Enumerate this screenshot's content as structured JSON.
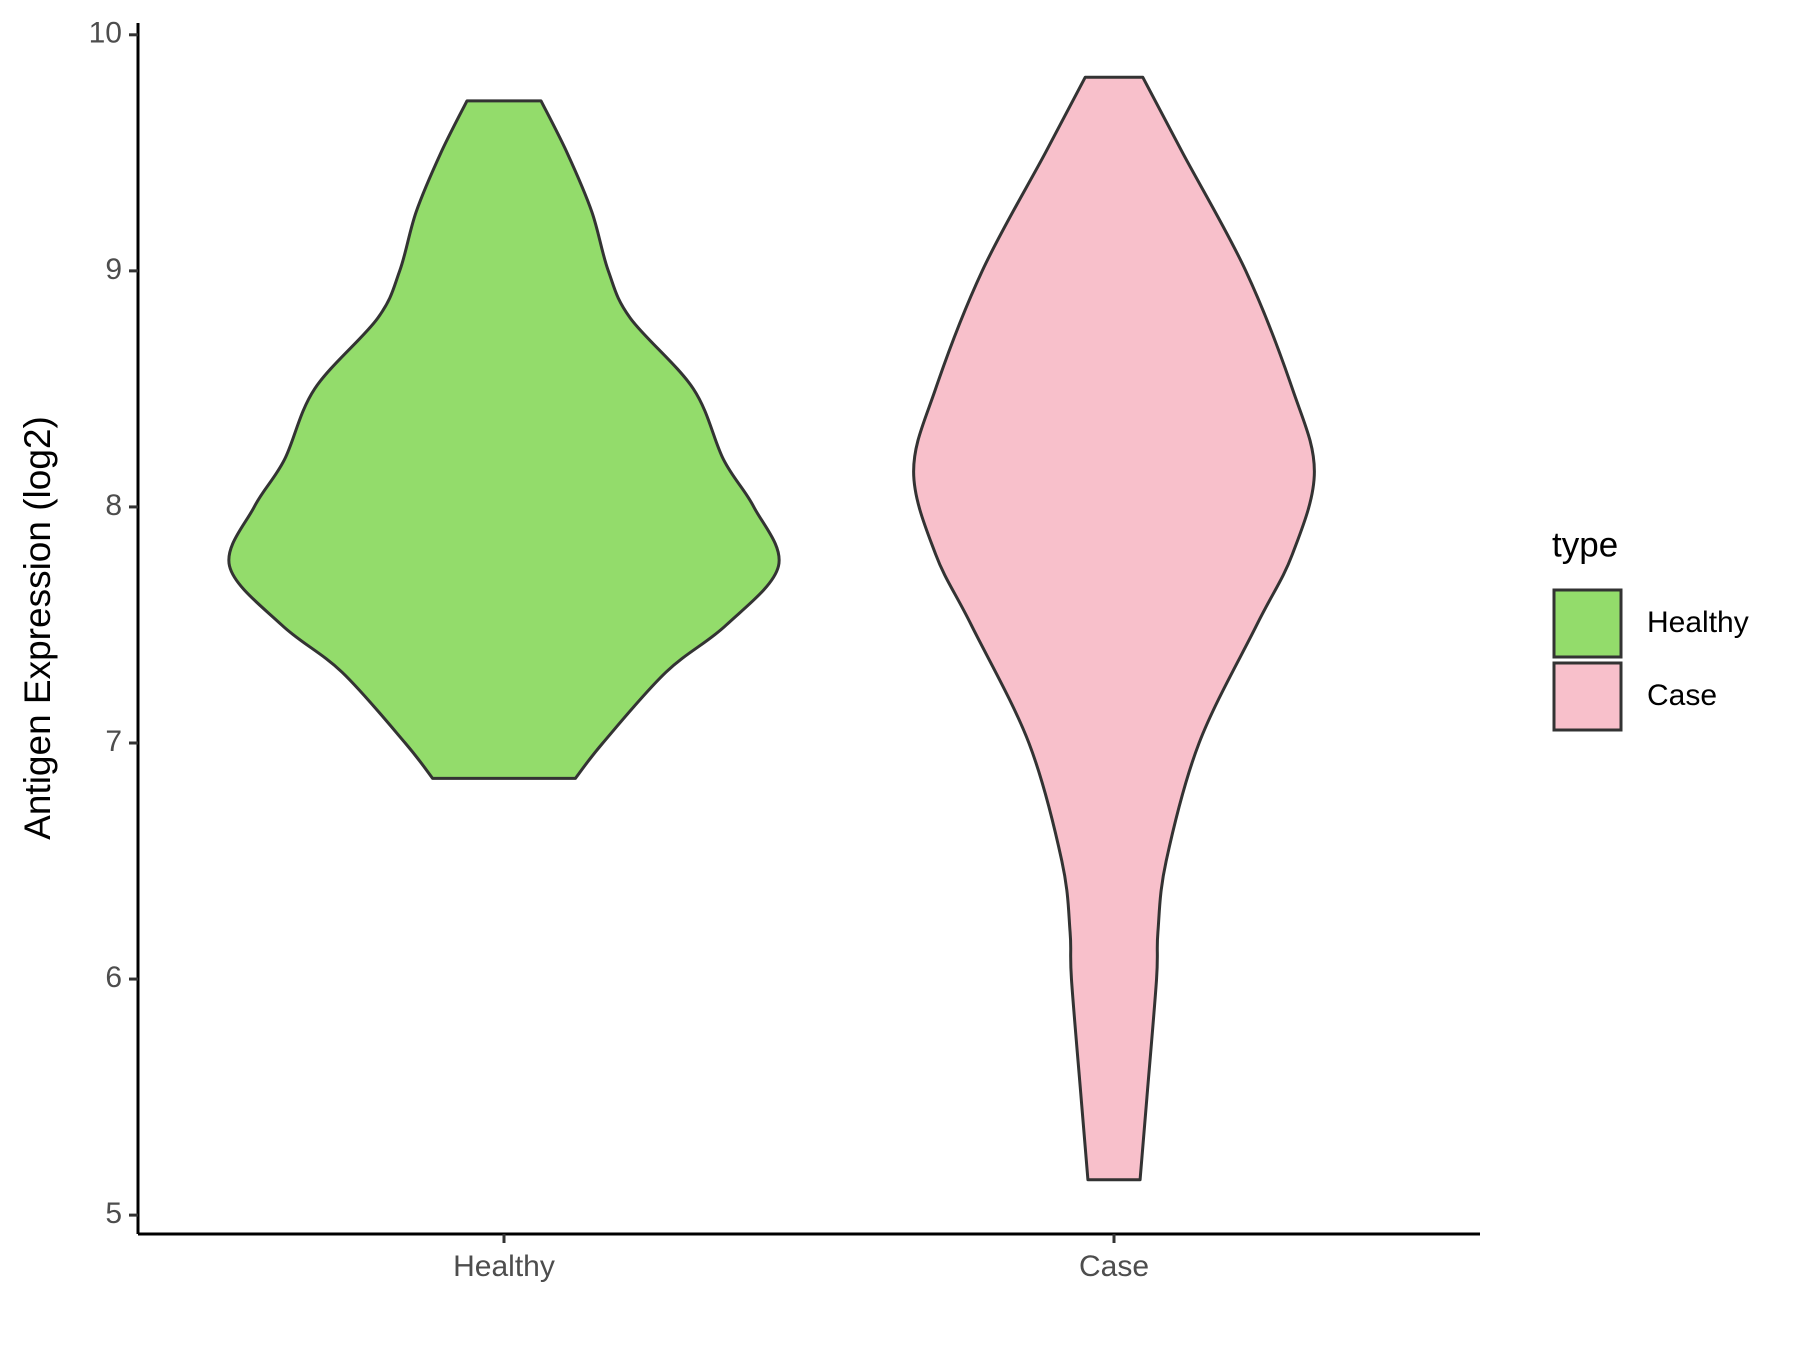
{
  "chart_data": {
    "type": "violin",
    "y_label": "Antigen Expression (log2)",
    "categories": [
      "Healthy",
      "Case"
    ],
    "series": [
      {
        "name": "Healthy",
        "color": "#93dc6b",
        "y": [
          9.72,
          9.5,
          9.25,
          9.0,
          8.8,
          8.5,
          8.2,
          8.0,
          7.75,
          7.5,
          7.3,
          7.0,
          6.85
        ],
        "density": [
          0.135,
          0.23,
          0.32,
          0.38,
          0.46,
          0.69,
          0.8,
          0.91,
          1.0,
          0.81,
          0.59,
          0.36,
          0.26
        ]
      },
      {
        "name": "Case",
        "color": "#f8c0cb",
        "y": [
          9.82,
          9.5,
          9.0,
          8.5,
          8.15,
          7.8,
          7.5,
          7.0,
          6.5,
          6.2,
          6.0,
          5.5,
          5.15
        ],
        "density": [
          0.105,
          0.25,
          0.48,
          0.65,
          0.73,
          0.65,
          0.52,
          0.31,
          0.19,
          0.16,
          0.155,
          0.12,
          0.095
        ]
      }
    ],
    "ylim": [
      4.92,
      10.05
    ],
    "yticks": [
      5,
      6,
      7,
      8,
      9,
      10
    ],
    "legend": {
      "title": "type",
      "position": "right"
    }
  }
}
